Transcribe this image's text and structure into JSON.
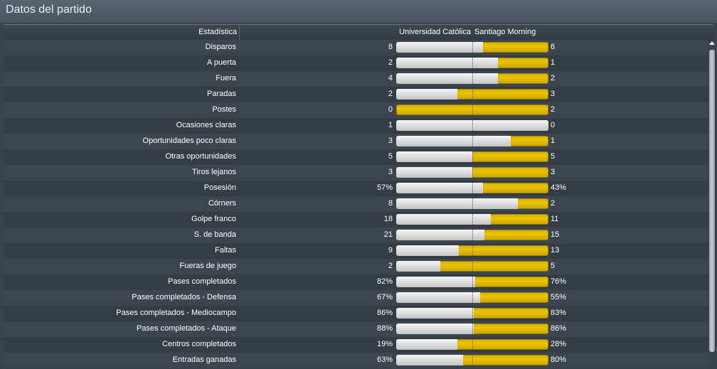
{
  "window": {
    "title": "Datos del partido"
  },
  "header": {
    "stat_label": "Estadística",
    "home_team": "Universidad Católica",
    "away_team": "Santiago Morning"
  },
  "stats": [
    {
      "label": "Disparos",
      "home": "8",
      "away": "6",
      "home_share": 0.57
    },
    {
      "label": "A puerta",
      "home": "2",
      "away": "1",
      "home_share": 0.67
    },
    {
      "label": "Fuera",
      "home": "4",
      "away": "2",
      "home_share": 0.67
    },
    {
      "label": "Paradas",
      "home": "2",
      "away": "3",
      "home_share": 0.4
    },
    {
      "label": "Postes",
      "home": "0",
      "away": "2",
      "home_share": 0.0
    },
    {
      "label": "Ocasiones claras",
      "home": "1",
      "away": "0",
      "home_share": 1.0
    },
    {
      "label": "Oportunidades poco claras",
      "home": "3",
      "away": "1",
      "home_share": 0.75
    },
    {
      "label": "Otras oportunidades",
      "home": "5",
      "away": "5",
      "home_share": 0.5
    },
    {
      "label": "Tiros lejanos",
      "home": "3",
      "away": "3",
      "home_share": 0.5
    },
    {
      "label": "Posesión",
      "home": "57%",
      "away": "43%",
      "home_share": 0.57
    },
    {
      "label": "Córners",
      "home": "8",
      "away": "2",
      "home_share": 0.8
    },
    {
      "label": "Golpe franco",
      "home": "18",
      "away": "11",
      "home_share": 0.62
    },
    {
      "label": "S. de banda",
      "home": "21",
      "away": "15",
      "home_share": 0.58
    },
    {
      "label": "Faltas",
      "home": "9",
      "away": "13",
      "home_share": 0.41
    },
    {
      "label": "Fueras de juego",
      "home": "2",
      "away": "5",
      "home_share": 0.29
    },
    {
      "label": "Pases completados",
      "home": "82%",
      "away": "76%",
      "home_share": 0.52
    },
    {
      "label": "Pases completados - Defensa",
      "home": "67%",
      "away": "55%",
      "home_share": 0.55
    },
    {
      "label": "Pases completados - Mediocampo",
      "home": "86%",
      "away": "83%",
      "home_share": 0.51
    },
    {
      "label": "Pases completados - Ataque",
      "home": "88%",
      "away": "86%",
      "home_share": 0.51
    },
    {
      "label": "Centros completados",
      "home": "19%",
      "away": "28%",
      "home_share": 0.4
    },
    {
      "label": "Entradas ganadas",
      "home": "63%",
      "away": "80%",
      "home_share": 0.44
    }
  ],
  "colors": {
    "home_bar": "#e0e0e0",
    "away_bar": "#e6be00",
    "background": "#3a434c"
  },
  "icons": {
    "scroll_up": "scroll-up-arrow-icon"
  }
}
